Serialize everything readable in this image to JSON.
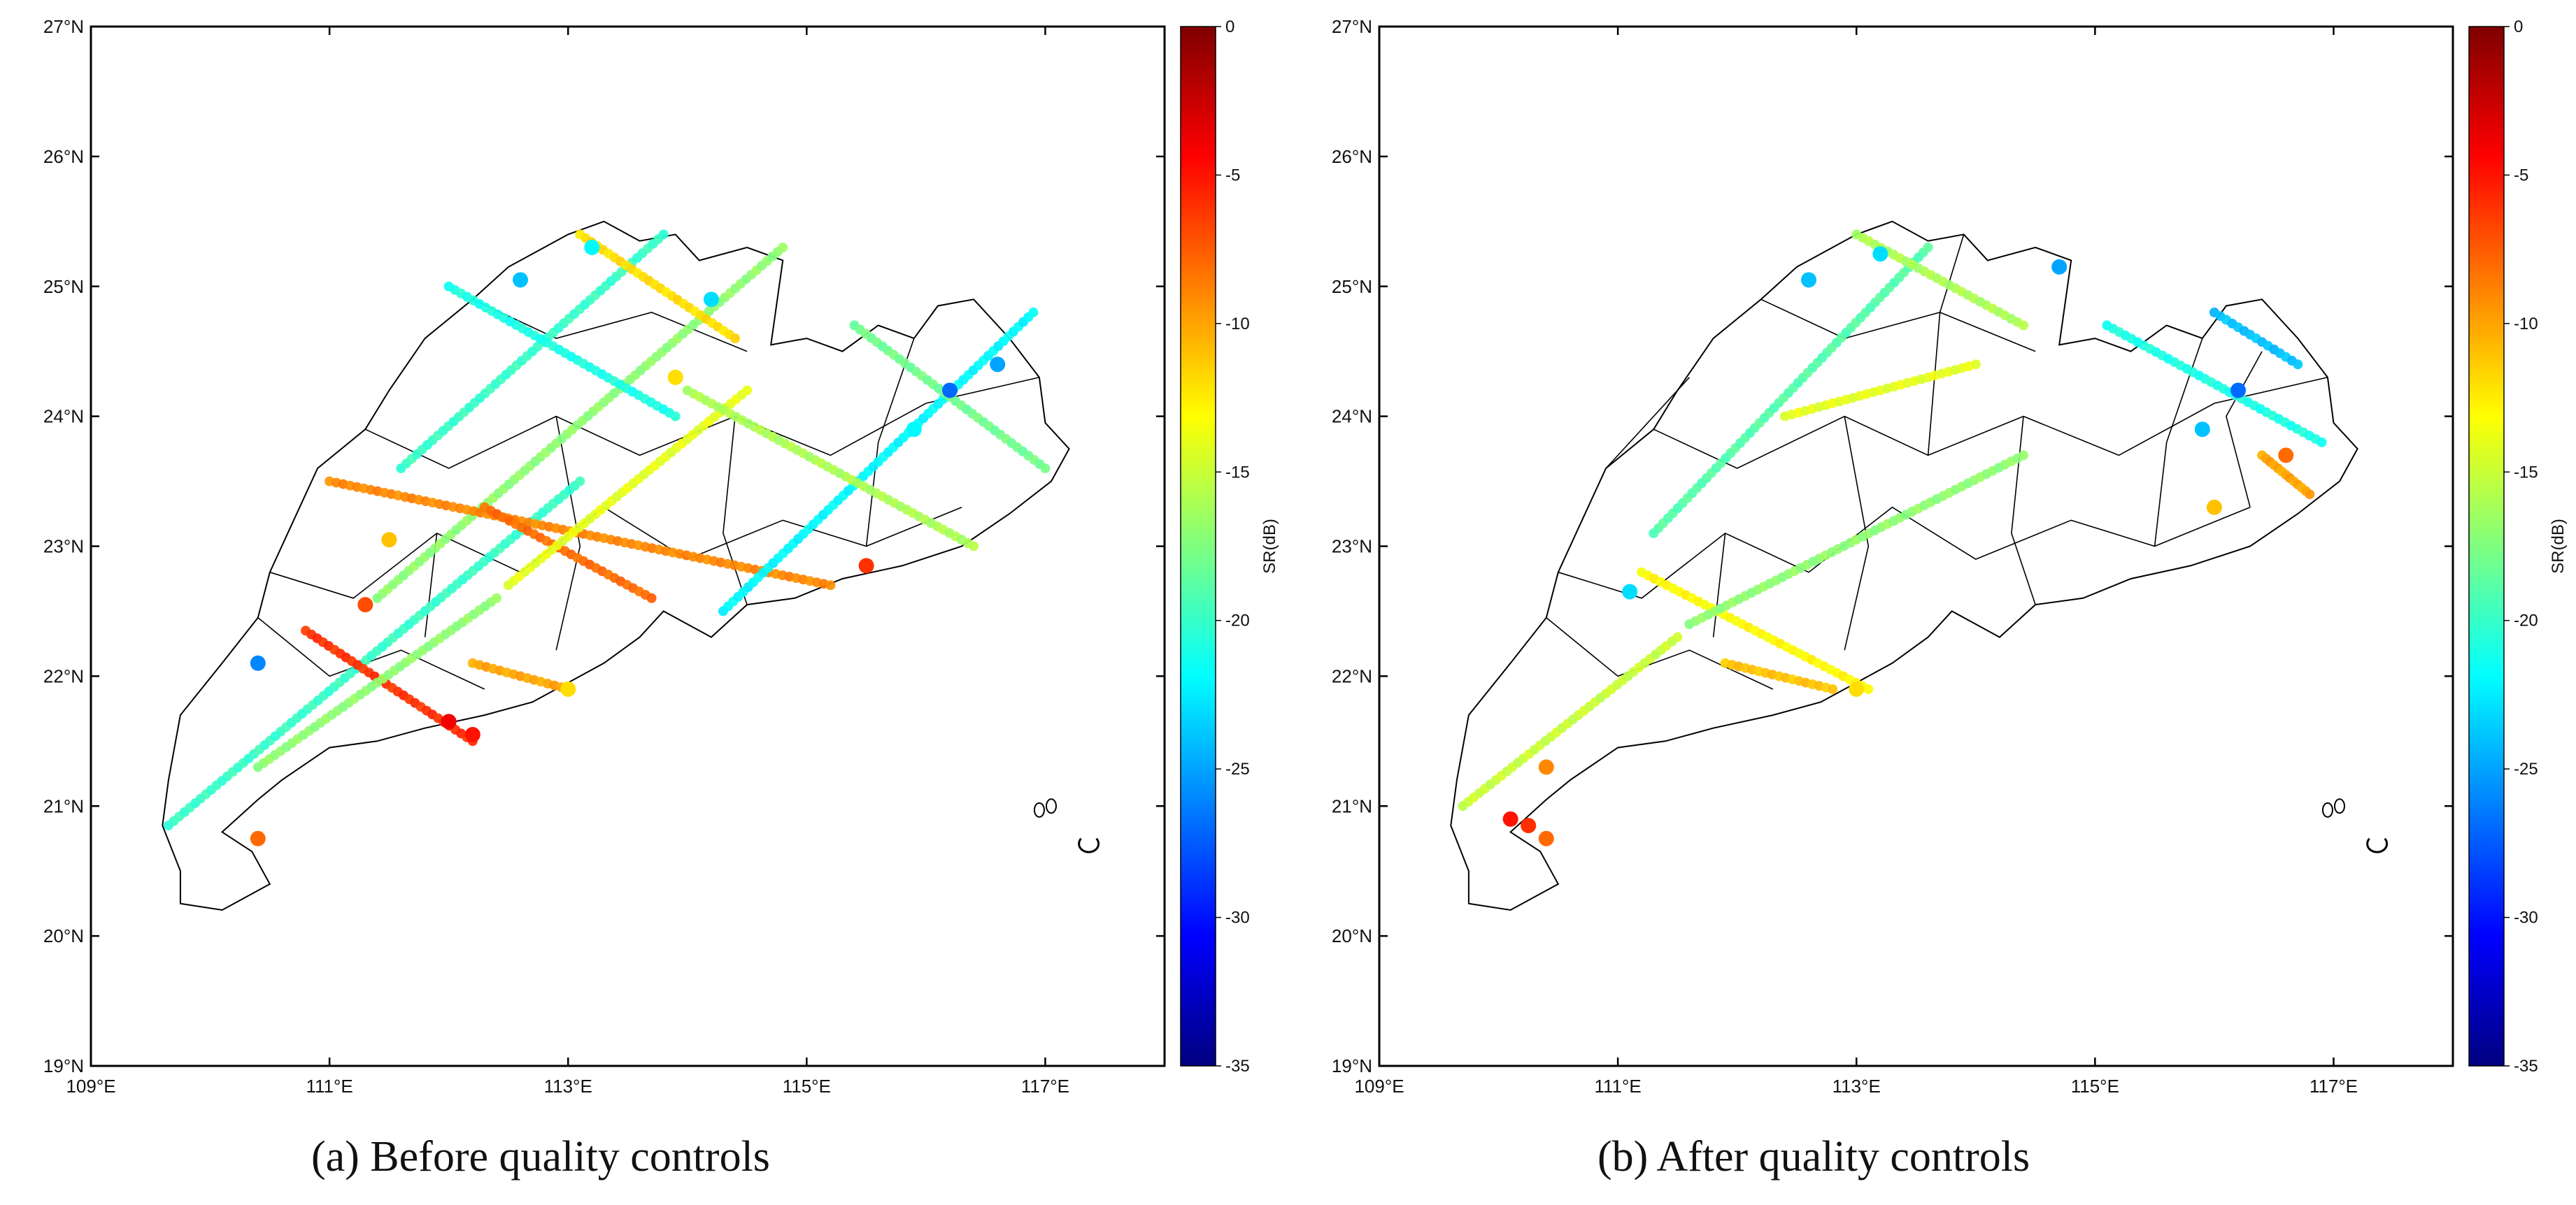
{
  "figure": {
    "captions": {
      "a": "(a) Before quality controls",
      "b": "(b) After quality controls"
    },
    "map": {
      "lon_range": [
        109,
        118
      ],
      "lat_range": [
        19,
        27
      ],
      "x_ticks": [
        "109°E",
        "111°E",
        "113°E",
        "115°E",
        "117°E"
      ],
      "y_ticks": [
        "19°N",
        "20°N",
        "21°N",
        "22°N",
        "23°N",
        "24°N",
        "25°N",
        "26°N",
        "27°N"
      ]
    },
    "colorbar": {
      "label": "SR(dB)",
      "min": -35,
      "max": 0,
      "ticks": [
        "0",
        "-5",
        "-10",
        "-15",
        "-20",
        "-25",
        "-30",
        "-35"
      ],
      "colormap": "jet",
      "colors": [
        "#00007f",
        "#0000ff",
        "#007fff",
        "#00ffff",
        "#7fff7f",
        "#ffff00",
        "#ff7f00",
        "#ff0000",
        "#7f0000"
      ]
    },
    "coastline_color": "#000000",
    "tracks_a": [
      {
        "lon0": 109.65,
        "lat0": 20.85,
        "lon1": 113.1,
        "lat1": 23.5,
        "sr": -20
      },
      {
        "lon0": 110.8,
        "lat0": 22.35,
        "lon1": 112.2,
        "lat1": 21.5,
        "sr": -6
      },
      {
        "lon0": 111.4,
        "lat0": 22.6,
        "lon1": 114.8,
        "lat1": 25.3,
        "sr": -17
      },
      {
        "lon0": 111.0,
        "lat0": 23.5,
        "lon1": 115.2,
        "lat1": 22.7,
        "sr": -9
      },
      {
        "lon0": 112.3,
        "lat0": 23.3,
        "lon1": 113.7,
        "lat1": 22.6,
        "sr": -8
      },
      {
        "lon0": 111.6,
        "lat0": 23.6,
        "lon1": 113.8,
        "lat1": 25.4,
        "sr": -20
      },
      {
        "lon0": 112.5,
        "lat0": 22.7,
        "lon1": 114.5,
        "lat1": 24.2,
        "sr": -14
      },
      {
        "lon0": 114.3,
        "lat0": 22.5,
        "lon1": 116.9,
        "lat1": 24.8,
        "sr": -22
      },
      {
        "lon0": 115.4,
        "lat0": 24.7,
        "lon1": 117.0,
        "lat1": 23.6,
        "sr": -18
      },
      {
        "lon0": 112.0,
        "lat0": 25.0,
        "lon1": 113.9,
        "lat1": 24.0,
        "sr": -21
      },
      {
        "lon0": 113.1,
        "lat0": 25.4,
        "lon1": 114.4,
        "lat1": 24.6,
        "sr": -12
      },
      {
        "lon0": 114.0,
        "lat0": 24.2,
        "lon1": 116.4,
        "lat1": 23.0,
        "sr": -16
      },
      {
        "lon0": 110.4,
        "lat0": 21.3,
        "lon1": 112.4,
        "lat1": 22.6,
        "sr": -17
      },
      {
        "lon0": 112.2,
        "lat0": 22.1,
        "lon1": 113.0,
        "lat1": 21.9,
        "sr": -10
      }
    ],
    "points_a": [
      {
        "lon": 112.0,
        "lat": 21.65,
        "sr": -4
      },
      {
        "lon": 112.2,
        "lat": 21.55,
        "sr": -5
      },
      {
        "lon": 110.4,
        "lat": 20.75,
        "sr": -8
      },
      {
        "lon": 115.5,
        "lat": 22.85,
        "sr": -6
      },
      {
        "lon": 111.3,
        "lat": 22.55,
        "sr": -7
      },
      {
        "lon": 110.4,
        "lat": 22.1,
        "sr": -26
      },
      {
        "lon": 116.2,
        "lat": 24.2,
        "sr": -27
      },
      {
        "lon": 116.6,
        "lat": 24.4,
        "sr": -25
      },
      {
        "lon": 113.2,
        "lat": 25.3,
        "sr": -22
      },
      {
        "lon": 112.6,
        "lat": 25.05,
        "sr": -24
      },
      {
        "lon": 114.2,
        "lat": 24.9,
        "sr": -23
      },
      {
        "lon": 113.9,
        "lat": 24.3,
        "sr": -12
      },
      {
        "lon": 115.9,
        "lat": 23.9,
        "sr": -22
      },
      {
        "lon": 111.5,
        "lat": 23.05,
        "sr": -11
      },
      {
        "lon": 113.0,
        "lat": 21.9,
        "sr": -12
      }
    ],
    "tracks_b": [
      {
        "lon0": 109.7,
        "lat0": 21.0,
        "lon1": 111.5,
        "lat1": 22.3,
        "sr": -15
      },
      {
        "lon0": 111.2,
        "lat0": 22.8,
        "lon1": 113.1,
        "lat1": 21.9,
        "sr": -13
      },
      {
        "lon0": 111.6,
        "lat0": 22.4,
        "lon1": 114.4,
        "lat1": 23.7,
        "sr": -17
      },
      {
        "lon0": 111.3,
        "lat0": 23.1,
        "lon1": 113.6,
        "lat1": 25.3,
        "sr": -19
      },
      {
        "lon0": 113.0,
        "lat0": 25.4,
        "lon1": 114.4,
        "lat1": 24.7,
        "sr": -16
      },
      {
        "lon0": 112.4,
        "lat0": 24.0,
        "lon1": 114.0,
        "lat1": 24.4,
        "sr": -14
      },
      {
        "lon0": 115.1,
        "lat0": 24.7,
        "lon1": 116.9,
        "lat1": 23.8,
        "sr": -21
      },
      {
        "lon0": 116.0,
        "lat0": 24.8,
        "lon1": 116.7,
        "lat1": 24.4,
        "sr": -24
      },
      {
        "lon0": 116.4,
        "lat0": 23.7,
        "lon1": 116.8,
        "lat1": 23.4,
        "sr": -10
      },
      {
        "lon0": 111.9,
        "lat0": 22.1,
        "lon1": 112.8,
        "lat1": 21.9,
        "sr": -11
      }
    ],
    "points_b": [
      {
        "lon": 110.1,
        "lat": 20.9,
        "sr": -5
      },
      {
        "lon": 110.4,
        "lat": 20.75,
        "sr": -8
      },
      {
        "lon": 110.25,
        "lat": 20.85,
        "sr": -6
      },
      {
        "lon": 110.4,
        "lat": 21.3,
        "sr": -9
      },
      {
        "lon": 116.6,
        "lat": 23.7,
        "sr": -8
      },
      {
        "lon": 116.2,
        "lat": 24.2,
        "sr": -27
      },
      {
        "lon": 114.7,
        "lat": 25.15,
        "sr": -25
      },
      {
        "lon": 112.6,
        "lat": 25.05,
        "sr": -24
      },
      {
        "lon": 113.2,
        "lat": 25.25,
        "sr": -23
      },
      {
        "lon": 116.0,
        "lat": 23.3,
        "sr": -11
      },
      {
        "lon": 111.1,
        "lat": 22.65,
        "sr": -23
      },
      {
        "lon": 115.9,
        "lat": 23.9,
        "sr": -24
      },
      {
        "lon": 113.0,
        "lat": 21.9,
        "sr": -12
      }
    ]
  }
}
